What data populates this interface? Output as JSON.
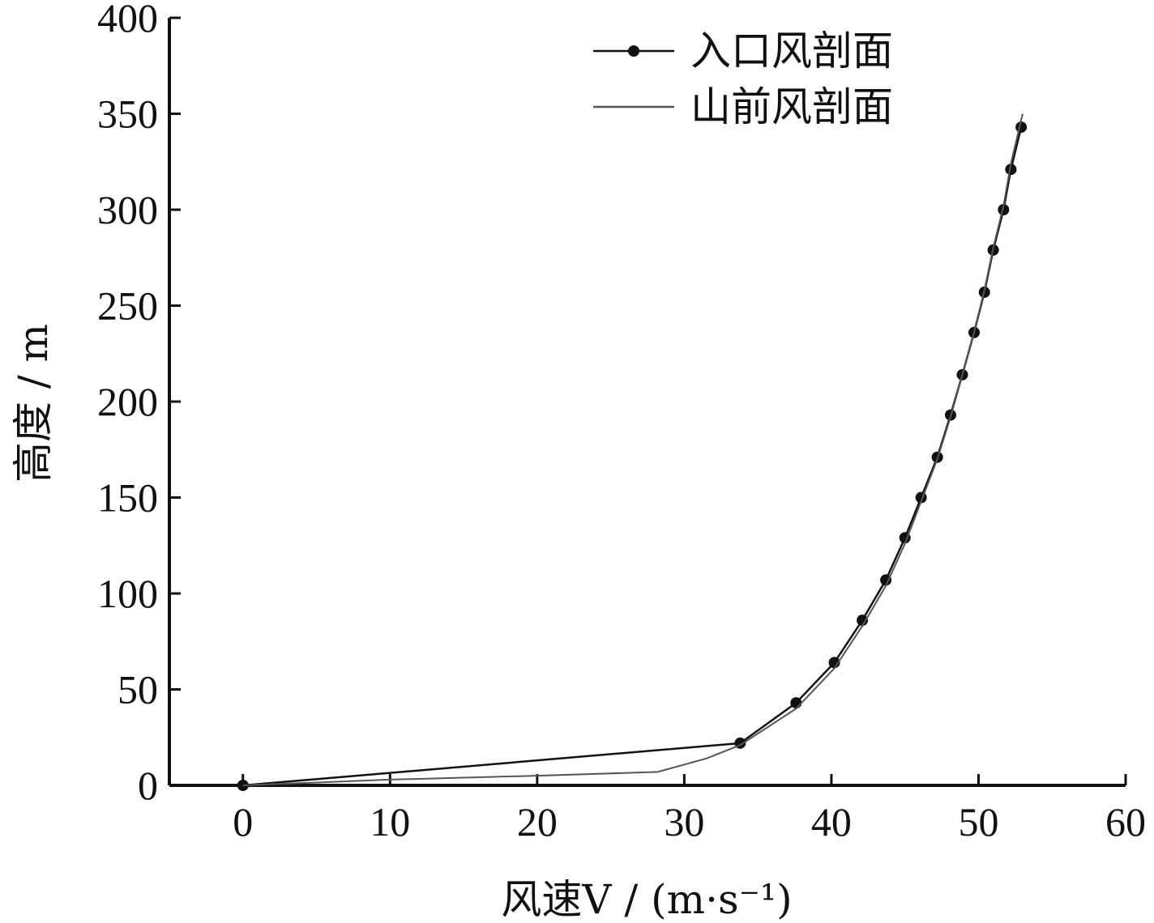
{
  "chart_data": {
    "type": "line",
    "title": "",
    "xlabel": "风速V / (m·s⁻¹)",
    "ylabel": "高度 / m",
    "xlim": [
      -5,
      60
    ],
    "ylim": [
      0,
      400
    ],
    "x_ticks": [
      0,
      10,
      20,
      30,
      40,
      50,
      60
    ],
    "y_ticks": [
      0,
      50,
      100,
      150,
      200,
      250,
      300,
      350,
      400
    ],
    "x_tick_labels": [
      "0",
      "10",
      "20",
      "30",
      "40",
      "50",
      "60"
    ],
    "y_tick_labels": [
      "0",
      "50",
      "100",
      "150",
      "200",
      "250",
      "300",
      "350",
      "400"
    ],
    "grid": false,
    "legend_position": "top-right",
    "series": [
      {
        "name": "入口风剖面",
        "marker": "circle",
        "color": "#111111",
        "points": [
          [
            0.0,
            0
          ],
          [
            33.8,
            22
          ],
          [
            37.6,
            43
          ],
          [
            40.2,
            64
          ],
          [
            42.1,
            86
          ],
          [
            43.7,
            107
          ],
          [
            45.0,
            129
          ],
          [
            46.1,
            150
          ],
          [
            47.2,
            171
          ],
          [
            48.1,
            193
          ],
          [
            48.9,
            214
          ],
          [
            49.7,
            236
          ],
          [
            50.4,
            257
          ],
          [
            51.0,
            279
          ],
          [
            51.7,
            300
          ],
          [
            52.2,
            321
          ],
          [
            52.9,
            343
          ]
        ]
      },
      {
        "name": "山前风剖面",
        "marker": "none",
        "color": "#555555",
        "points": [
          [
            0.0,
            0
          ],
          [
            10.0,
            3
          ],
          [
            20.0,
            5
          ],
          [
            28.2,
            7
          ],
          [
            31.5,
            14
          ],
          [
            33.8,
            21
          ],
          [
            37.6,
            40
          ],
          [
            40.2,
            61
          ],
          [
            42.1,
            83
          ],
          [
            43.7,
            104
          ],
          [
            45.0,
            126
          ],
          [
            46.1,
            148
          ],
          [
            47.2,
            170
          ],
          [
            48.1,
            192
          ],
          [
            48.9,
            214
          ],
          [
            49.7,
            236
          ],
          [
            50.4,
            258
          ],
          [
            51.0,
            280
          ],
          [
            51.7,
            302
          ],
          [
            52.2,
            324
          ],
          [
            53.0,
            350
          ]
        ]
      }
    ]
  }
}
